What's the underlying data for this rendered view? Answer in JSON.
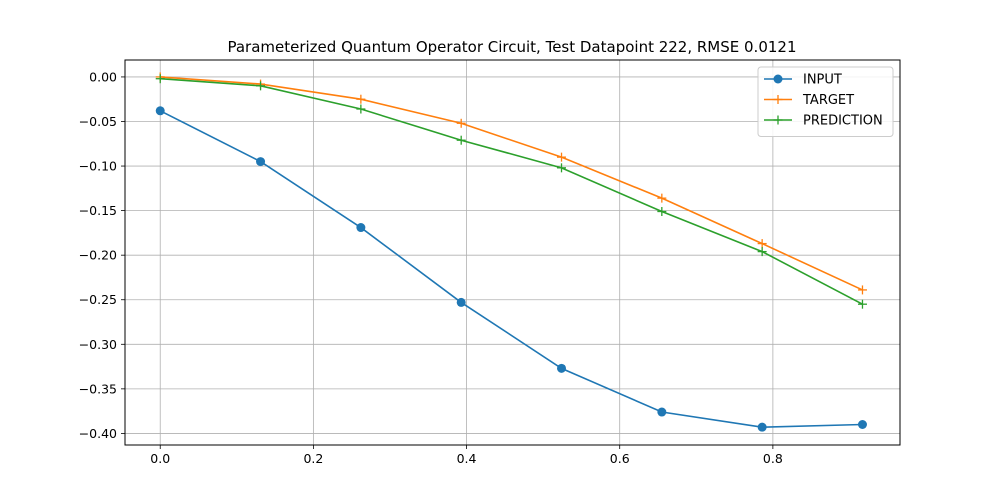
{
  "chart_data": {
    "type": "line",
    "title": "Parameterized Quantum Operator Circuit, Test Datapoint 222, RMSE 0.0121",
    "xlabel": "",
    "ylabel": "",
    "xlim": [
      -0.046,
      0.966
    ],
    "ylim": [
      -0.413,
      0.019
    ],
    "xticks": [
      0.0,
      0.2,
      0.4,
      0.6,
      0.8
    ],
    "xtick_labels": [
      "0.0",
      "0.2",
      "0.4",
      "0.6",
      "0.8"
    ],
    "yticks": [
      0.0,
      -0.05,
      -0.1,
      -0.15,
      -0.2,
      -0.25,
      -0.3,
      -0.35,
      -0.4
    ],
    "ytick_labels": [
      "0.00",
      "−0.05",
      "−0.10",
      "−0.15",
      "−0.20",
      "−0.25",
      "−0.30",
      "−0.35",
      "−0.40"
    ],
    "grid": true,
    "legend_position": "top-right",
    "x": [
      0.0,
      0.131,
      0.262,
      0.393,
      0.524,
      0.655,
      0.786,
      0.917
    ],
    "series": [
      {
        "name": "INPUT",
        "color": "#1f77b4",
        "marker": "circle",
        "values": [
          -0.038,
          -0.095,
          -0.169,
          -0.253,
          -0.327,
          -0.376,
          -0.393,
          -0.39
        ]
      },
      {
        "name": "TARGET",
        "color": "#ff7f0e",
        "marker": "plus",
        "values": [
          0.0,
          -0.008,
          -0.025,
          -0.052,
          -0.09,
          -0.136,
          -0.187,
          -0.239
        ]
      },
      {
        "name": "PREDICTION",
        "color": "#2ca02c",
        "marker": "plus",
        "values": [
          -0.002,
          -0.01,
          -0.036,
          -0.071,
          -0.102,
          -0.151,
          -0.196,
          -0.255
        ]
      }
    ]
  }
}
